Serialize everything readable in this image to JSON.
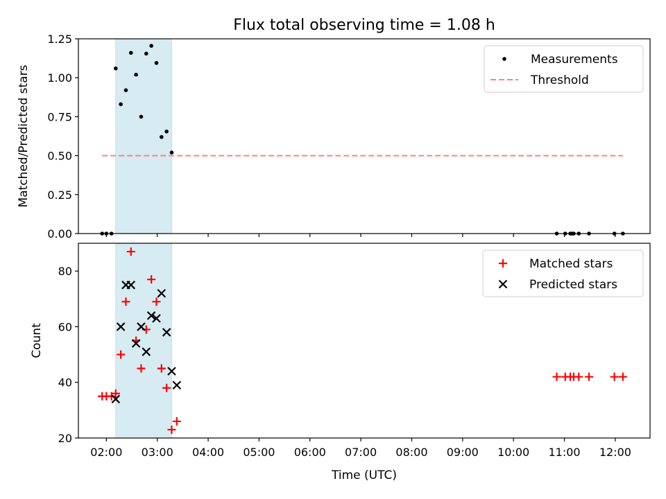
{
  "title": "Flux total observing time = 1.08 h",
  "chart_data": [
    {
      "type": "scatter",
      "name": "ratio-panel",
      "ylabel": "Matched/Predicted stars",
      "xlabel": "",
      "x_is_time": true,
      "ylim": [
        0,
        1.25
      ],
      "yticks": [
        0,
        0.25,
        0.5,
        0.75,
        1.0,
        1.25
      ],
      "ytick_labels": [
        "0.00",
        "0.25",
        "0.50",
        "0.75",
        "1.00",
        "1.25"
      ],
      "legend_location": "top-right",
      "grid": false,
      "shaded_interval": [
        "02:11",
        "03:17"
      ],
      "series": [
        {
          "name": "Measurements",
          "marker": "dot",
          "color": "#000000",
          "x": [
            "01:55",
            "02:00",
            "02:06",
            "02:11",
            "02:17",
            "02:23",
            "02:29",
            "02:35",
            "02:41",
            "02:47",
            "02:53",
            "02:59",
            "03:05",
            "03:11",
            "03:17",
            "10:51",
            "11:01",
            "11:07",
            "11:09",
            "11:11",
            "11:17",
            "11:29",
            "11:59",
            "12:09"
          ],
          "y": [
            0.0,
            0.0,
            0.0,
            1.06,
            0.83,
            0.92,
            1.16,
            1.02,
            0.75,
            1.155,
            1.205,
            1.095,
            0.62,
            0.655,
            0.52,
            0.0,
            0.0,
            0.0,
            0.0,
            0.0,
            0.0,
            0.0,
            0.0,
            0.0
          ]
        },
        {
          "name": "Threshold",
          "style": "dashed",
          "color": "#ff8080",
          "x": [
            "01:55",
            "12:09"
          ],
          "y": [
            0.5,
            0.5
          ]
        }
      ]
    },
    {
      "type": "scatter",
      "name": "count-panel",
      "ylabel": "Count",
      "xlabel": "Time (UTC)",
      "x_is_time": true,
      "ylim": [
        20,
        90
      ],
      "yticks": [
        20,
        40,
        60,
        80
      ],
      "xlim": [
        "01:27",
        "12:41"
      ],
      "xticks": [
        "02:00",
        "03:00",
        "04:00",
        "05:00",
        "06:00",
        "07:00",
        "08:00",
        "09:00",
        "10:00",
        "11:00",
        "12:00"
      ],
      "legend_location": "top-right",
      "grid": false,
      "shaded_interval": [
        "02:11",
        "03:17"
      ],
      "series": [
        {
          "name": "Matched stars",
          "marker": "plus",
          "color": "#ff0000",
          "x": [
            "01:55",
            "02:00",
            "02:06",
            "02:11",
            "02:17",
            "02:23",
            "02:29",
            "02:35",
            "02:41",
            "02:47",
            "02:53",
            "02:59",
            "03:05",
            "03:11",
            "03:17",
            "03:23",
            "10:51",
            "11:01",
            "11:07",
            "11:11",
            "11:17",
            "11:29",
            "11:59",
            "12:09"
          ],
          "y": [
            35,
            35,
            35,
            36,
            50,
            69,
            87,
            55,
            45,
            59,
            77,
            69,
            45,
            38,
            23,
            26,
            42,
            42,
            42,
            42,
            42,
            42,
            42,
            42
          ]
        },
        {
          "name": "Predicted stars",
          "marker": "x",
          "color": "#000000",
          "x": [
            "02:11",
            "02:17",
            "02:23",
            "02:29",
            "02:35",
            "02:41",
            "02:47",
            "02:53",
            "02:59",
            "03:05",
            "03:11",
            "03:17",
            "03:23"
          ],
          "y": [
            34,
            60,
            75,
            75,
            54,
            60,
            51,
            64,
            63,
            72,
            58,
            44,
            39
          ]
        }
      ]
    }
  ]
}
